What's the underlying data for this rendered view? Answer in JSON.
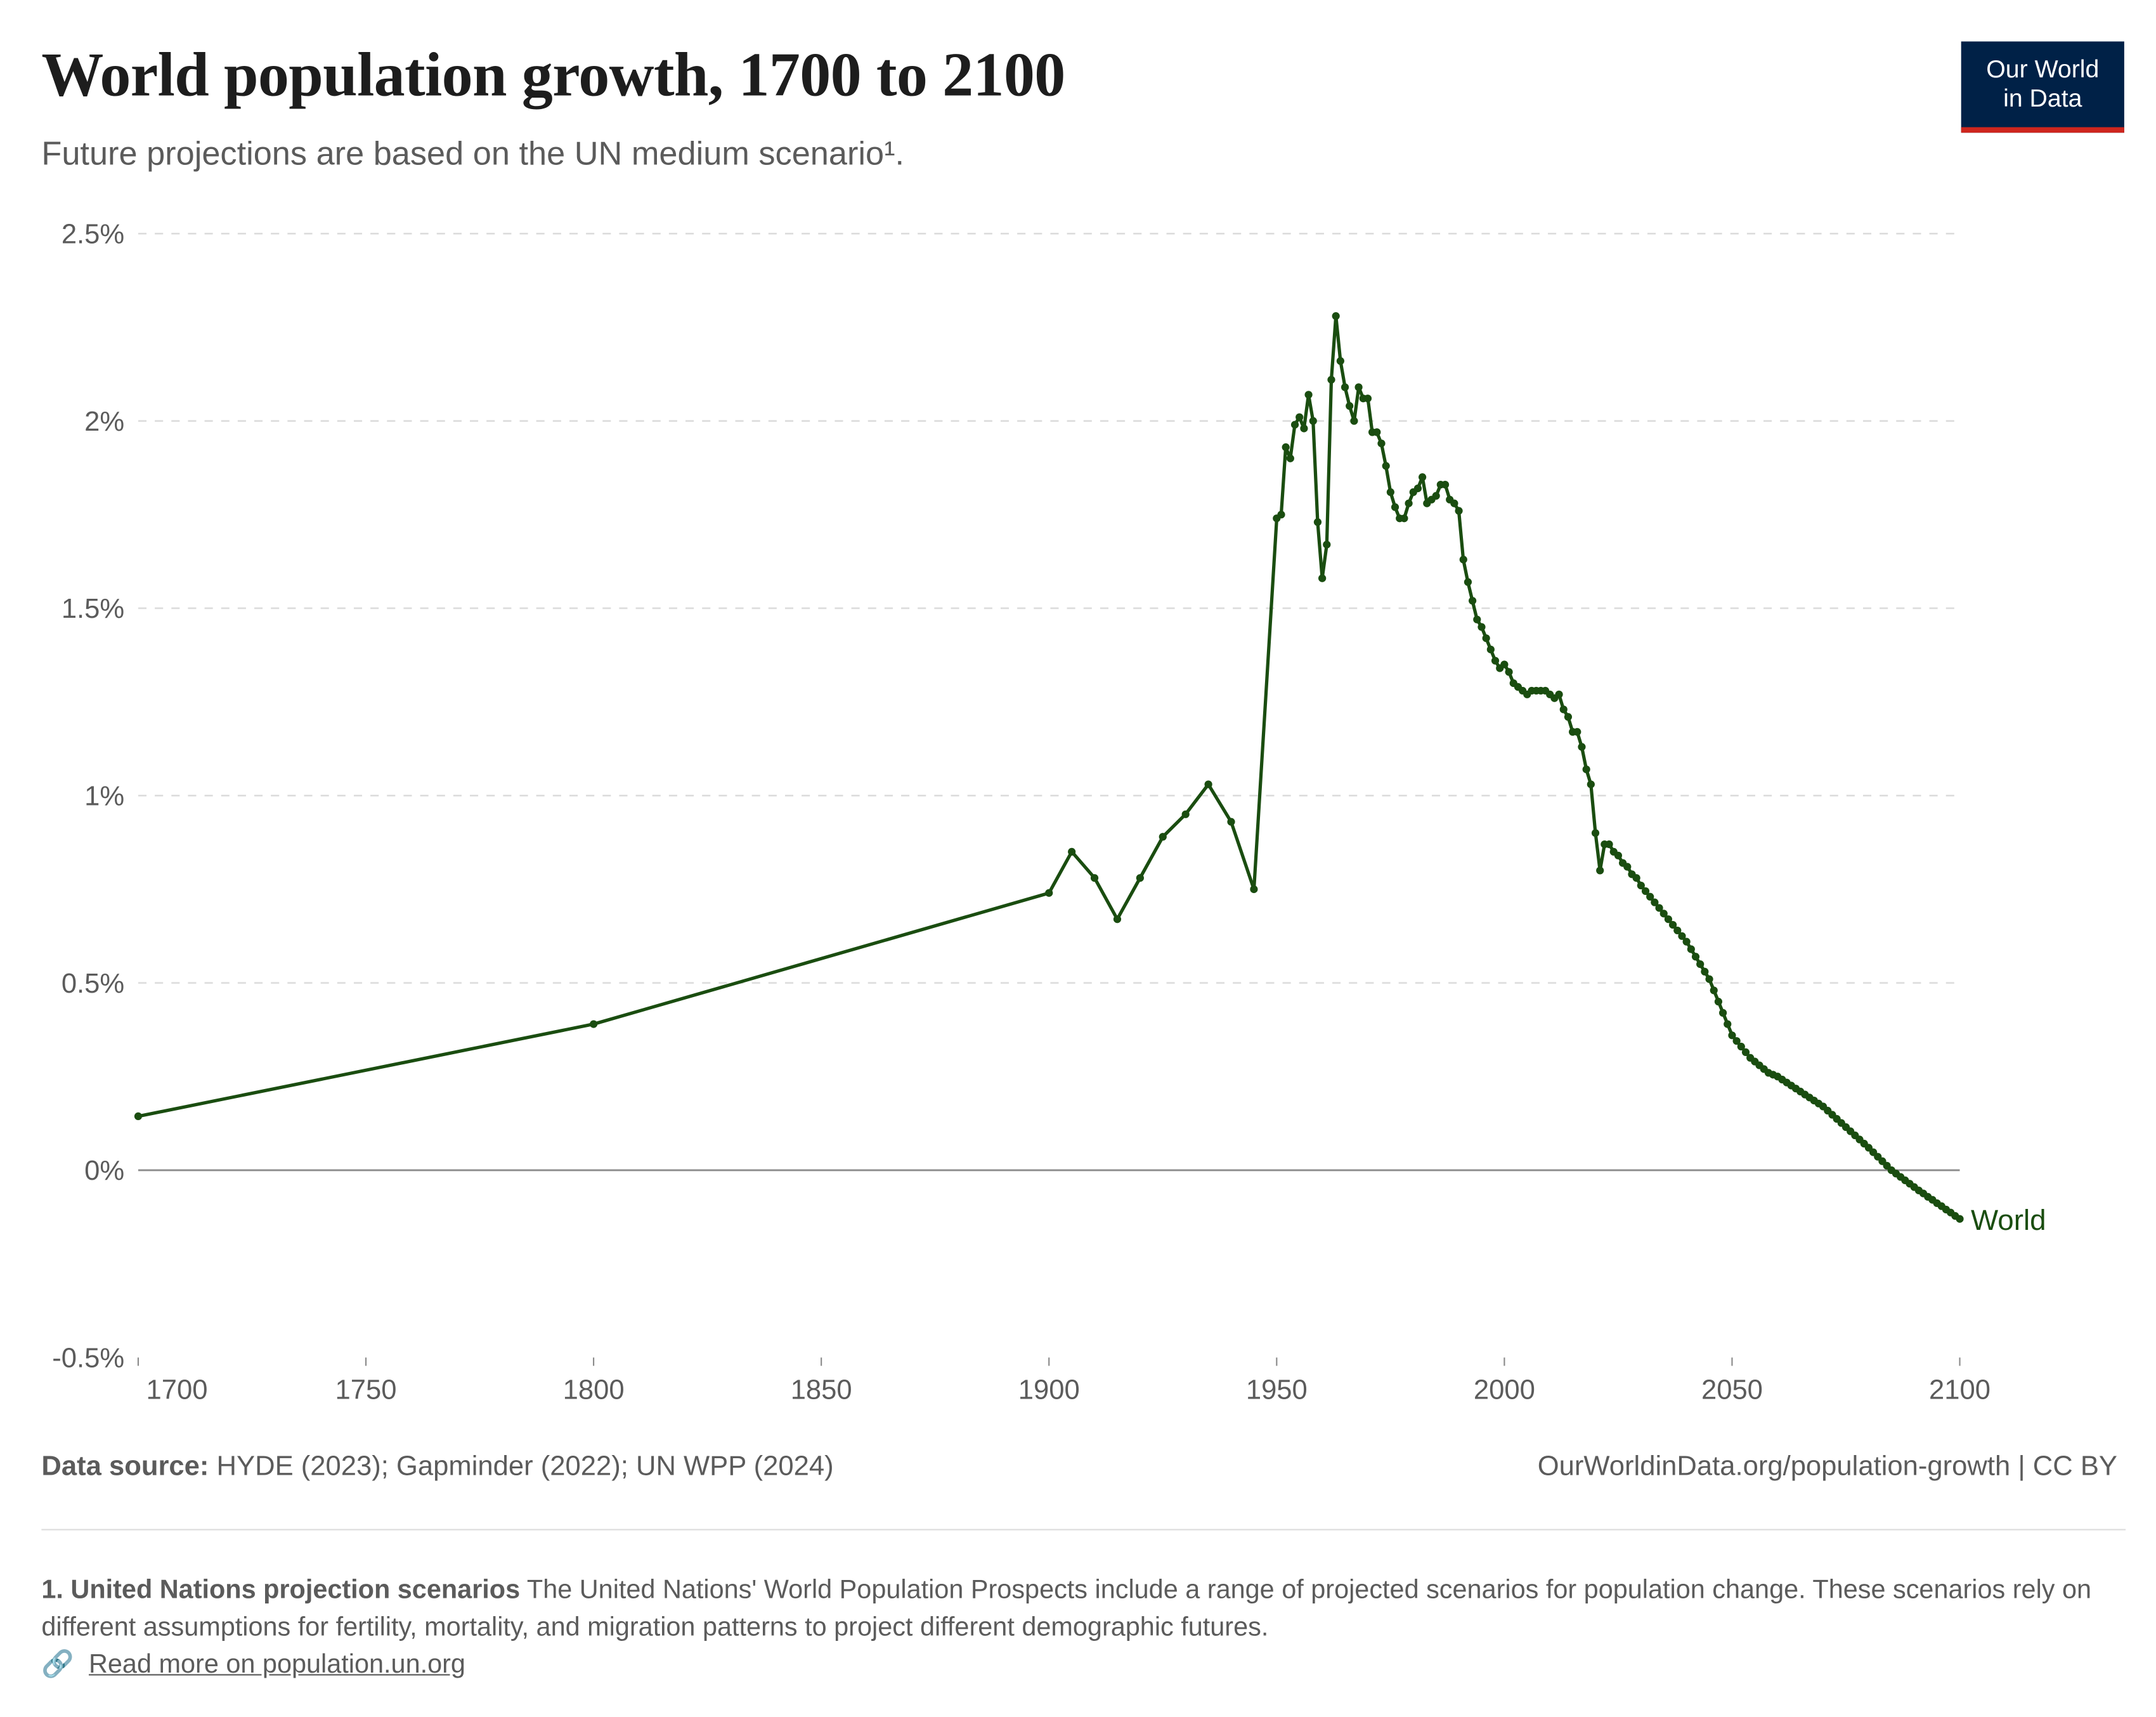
{
  "header": {
    "title": "World population growth, 1700 to 2100",
    "subtitle": "Future projections are based on the UN medium scenario¹.",
    "logo_line1": "Our World",
    "logo_line2": "in Data"
  },
  "footer": {
    "source_label": "Data source:",
    "source_text": " HYDE (2023); Gapminder (2022); UN WPP (2024)",
    "url": "OurWorldinData.org/population-growth | CC BY",
    "note_title": "1. United Nations projection scenarios",
    "note_text": " The United Nations' World Population Prospects include a range of projected scenarios for population change. These scenarios rely on different assumptions for fertility, mortality, and migration patterns to project different demographic futures.",
    "link_icon": "link-icon",
    "link_text": "Read more on population.un.org"
  },
  "chart_data": {
    "type": "line",
    "title": "World population growth, 1700 to 2100",
    "xlabel": "",
    "ylabel": "",
    "xlim": [
      1700,
      2100
    ],
    "ylim": [
      -0.5,
      2.5
    ],
    "x_ticks": [
      "1700",
      "1750",
      "1800",
      "1850",
      "1900",
      "1950",
      "2000",
      "2050",
      "2100"
    ],
    "x_tick_values": [
      1700,
      1750,
      1800,
      1850,
      1900,
      1950,
      2000,
      2050,
      2100
    ],
    "y_ticks": [
      "-0.5%",
      "0%",
      "0.5%",
      "1%",
      "1.5%",
      "2%",
      "2.5%"
    ],
    "y_tick_values": [
      -0.5,
      0,
      0.5,
      1,
      1.5,
      2,
      2.5
    ],
    "grid": "horizontal dashed",
    "legend": "end-of-line label",
    "line_color": "#1a4d10",
    "series": [
      {
        "name": "World",
        "x": [
          1700,
          1800,
          1900,
          1905,
          1910,
          1915,
          1920,
          1925,
          1930,
          1935,
          1940,
          1945,
          1950,
          1951,
          1952,
          1953,
          1954,
          1955,
          1956,
          1957,
          1958,
          1959,
          1960,
          1961,
          1962,
          1963,
          1964,
          1965,
          1966,
          1967,
          1968,
          1969,
          1970,
          1971,
          1972,
          1973,
          1974,
          1975,
          1976,
          1977,
          1978,
          1979,
          1980,
          1981,
          1982,
          1983,
          1984,
          1985,
          1986,
          1987,
          1988,
          1989,
          1990,
          1991,
          1992,
          1993,
          1994,
          1995,
          1996,
          1997,
          1998,
          1999,
          2000,
          2001,
          2002,
          2003,
          2004,
          2005,
          2006,
          2007,
          2008,
          2009,
          2010,
          2011,
          2012,
          2013,
          2014,
          2015,
          2016,
          2017,
          2018,
          2019,
          2020,
          2021,
          2022,
          2023,
          2024,
          2025,
          2026,
          2027,
          2028,
          2029,
          2030,
          2031,
          2032,
          2033,
          2034,
          2035,
          2036,
          2037,
          2038,
          2039,
          2040,
          2041,
          2042,
          2043,
          2044,
          2045,
          2046,
          2047,
          2048,
          2049,
          2050,
          2051,
          2052,
          2053,
          2054,
          2055,
          2056,
          2057,
          2058,
          2059,
          2060,
          2061,
          2062,
          2063,
          2064,
          2065,
          2066,
          2067,
          2068,
          2069,
          2070,
          2071,
          2072,
          2073,
          2074,
          2075,
          2076,
          2077,
          2078,
          2079,
          2080,
          2081,
          2082,
          2083,
          2084,
          2085,
          2086,
          2087,
          2088,
          2089,
          2090,
          2091,
          2092,
          2093,
          2094,
          2095,
          2096,
          2097,
          2098,
          2099,
          2100
        ],
        "y": [
          0.144,
          0.39,
          0.74,
          0.85,
          0.78,
          0.67,
          0.78,
          0.89,
          0.95,
          1.03,
          0.93,
          0.75,
          1.74,
          1.75,
          1.93,
          1.9,
          1.99,
          2.01,
          1.98,
          2.07,
          2.0,
          1.73,
          1.58,
          1.67,
          2.11,
          2.28,
          2.16,
          2.09,
          2.04,
          2.0,
          2.09,
          2.06,
          2.06,
          1.97,
          1.97,
          1.94,
          1.88,
          1.81,
          1.77,
          1.74,
          1.74,
          1.78,
          1.81,
          1.82,
          1.85,
          1.78,
          1.79,
          1.8,
          1.83,
          1.83,
          1.79,
          1.78,
          1.76,
          1.63,
          1.57,
          1.52,
          1.47,
          1.45,
          1.42,
          1.39,
          1.36,
          1.34,
          1.35,
          1.33,
          1.3,
          1.29,
          1.28,
          1.27,
          1.28,
          1.28,
          1.28,
          1.28,
          1.27,
          1.26,
          1.27,
          1.23,
          1.21,
          1.17,
          1.17,
          1.13,
          1.07,
          1.03,
          0.9,
          0.8,
          0.87,
          0.87,
          0.85,
          0.84,
          0.82,
          0.81,
          0.79,
          0.78,
          0.76,
          0.745,
          0.73,
          0.715,
          0.7,
          0.685,
          0.67,
          0.655,
          0.64,
          0.625,
          0.61,
          0.59,
          0.57,
          0.55,
          0.53,
          0.51,
          0.48,
          0.45,
          0.42,
          0.39,
          0.36,
          0.345,
          0.33,
          0.315,
          0.3,
          0.29,
          0.28,
          0.27,
          0.26,
          0.255,
          0.25,
          0.242,
          0.234,
          0.226,
          0.218,
          0.21,
          0.202,
          0.194,
          0.186,
          0.178,
          0.17,
          0.159,
          0.148,
          0.137,
          0.126,
          0.115,
          0.104,
          0.093,
          0.082,
          0.071,
          0.06,
          0.048,
          0.036,
          0.024,
          0.012,
          0.0,
          -0.009,
          -0.018,
          -0.027,
          -0.036,
          -0.045,
          -0.054,
          -0.062,
          -0.071,
          -0.079,
          -0.088,
          -0.096,
          -0.105,
          -0.113,
          -0.122,
          -0.13
        ]
      }
    ]
  }
}
